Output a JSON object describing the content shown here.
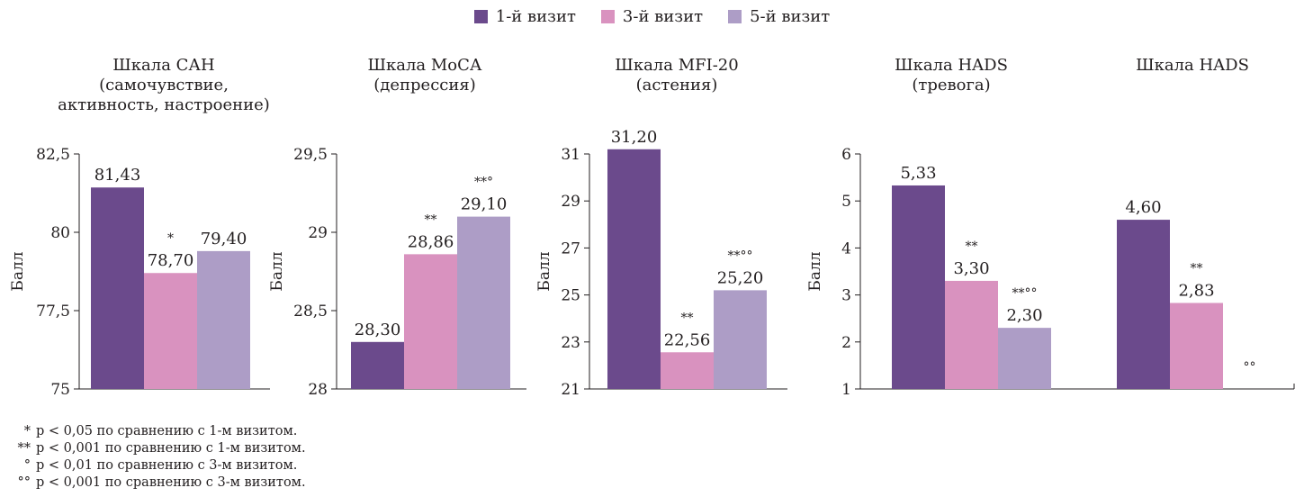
{
  "legend": {
    "items": [
      {
        "label": "1-й визит",
        "color": "#6b4a8c"
      },
      {
        "label": "3-й визит",
        "color": "#d992bf"
      },
      {
        "label": "5-й визит",
        "color": "#ad9dc6"
      }
    ]
  },
  "colors": [
    "#6b4a8c",
    "#d992bf",
    "#ad9dc6"
  ],
  "chart_data": [
    {
      "type": "bar",
      "title": "Шкала САН (самочувствие, активность, настроение)",
      "title_lines": [
        "Шкала САН",
        "(самочувствие,",
        "активность, настроение)"
      ],
      "ylabel": "Балл",
      "ylim": [
        75,
        82.5
      ],
      "yticks": [
        "75",
        "77,5",
        "80",
        "82,5"
      ],
      "ytick_values": [
        75,
        77.5,
        80,
        82.5
      ],
      "series": [
        {
          "name": "1-й визит",
          "value": 81.43,
          "label": "81,43",
          "sig": ""
        },
        {
          "name": "3-й визит",
          "value": 78.7,
          "label": "78,70",
          "sig": "*"
        },
        {
          "name": "5-й визит",
          "value": 79.4,
          "label": "79,40",
          "sig": ""
        }
      ]
    },
    {
      "type": "bar",
      "title": "Шкала МоСА (депрессия)",
      "title_lines": [
        "Шкала МоСА",
        "(депрессия)"
      ],
      "ylabel": "Балл",
      "ylim": [
        28,
        29.5
      ],
      "yticks": [
        "28",
        "28,5",
        "29",
        "29,5"
      ],
      "ytick_values": [
        28,
        28.5,
        29,
        29.5
      ],
      "series": [
        {
          "name": "1-й визит",
          "value": 28.3,
          "label": "28,30",
          "sig": ""
        },
        {
          "name": "3-й визит",
          "value": 28.86,
          "label": "28,86",
          "sig": "**"
        },
        {
          "name": "5-й визит",
          "value": 29.1,
          "label": "29,10",
          "sig": "**°"
        }
      ]
    },
    {
      "type": "bar",
      "title": "Шкала MFI-20 (астения)",
      "title_lines": [
        "Шкала MFI-20",
        "(астения)"
      ],
      "ylabel": "Балл",
      "ylim": [
        21,
        31
      ],
      "yticks": [
        "21",
        "23",
        "25",
        "27",
        "29",
        "31"
      ],
      "ytick_values": [
        21,
        23,
        25,
        27,
        29,
        31
      ],
      "series": [
        {
          "name": "1-й визит",
          "value": 31.2,
          "label": "31,20",
          "sig": ""
        },
        {
          "name": "3-й визит",
          "value": 22.56,
          "label": "22,56",
          "sig": "**"
        },
        {
          "name": "5-й визит",
          "value": 25.2,
          "label": "25,20",
          "sig": "**°°"
        }
      ]
    },
    {
      "type": "bar",
      "title": "Шкала HADS (тревога)",
      "title_lines": [
        "Шкала HADS",
        "(тревога)"
      ],
      "ylabel": "Балл",
      "ylim": [
        1,
        6
      ],
      "yticks": [
        "1",
        "2",
        "3",
        "4",
        "5",
        "6"
      ],
      "ytick_values": [
        1,
        2,
        3,
        4,
        5,
        6
      ],
      "series": [
        {
          "name": "1-й визит",
          "value": 5.33,
          "label": "5,33",
          "sig": ""
        },
        {
          "name": "3-й визит",
          "value": 3.3,
          "label": "3,30",
          "sig": "**"
        },
        {
          "name": "5-й визит",
          "value": 2.3,
          "label": "2,30",
          "sig": "**°°"
        }
      ]
    },
    {
      "type": "bar",
      "title": "Шкала HADS",
      "title_lines": [
        "Шкала HADS"
      ],
      "ylabel": "",
      "ylim": [
        1,
        6
      ],
      "yticks": [],
      "ytick_values": [],
      "series": [
        {
          "name": "1-й визит",
          "value": 4.6,
          "label": "4,60",
          "sig": ""
        },
        {
          "name": "3-й визит",
          "value": 2.83,
          "label": "2,83",
          "sig": "**"
        },
        {
          "name": "5-й визит",
          "value": null,
          "label": "",
          "sig": "°°"
        }
      ]
    }
  ],
  "footnotes": [
    {
      "mark": "*",
      "text": "p < 0,05 по сравнению с 1-м визитом."
    },
    {
      "mark": "**",
      "text": "p < 0,001 по сравнению с 1-м визитом."
    },
    {
      "mark": "°",
      "text": "p < 0,01 по сравнению с 3-м визитом."
    },
    {
      "mark": "°°",
      "text": "p < 0,001 по сравнению с 3-м визитом."
    }
  ]
}
